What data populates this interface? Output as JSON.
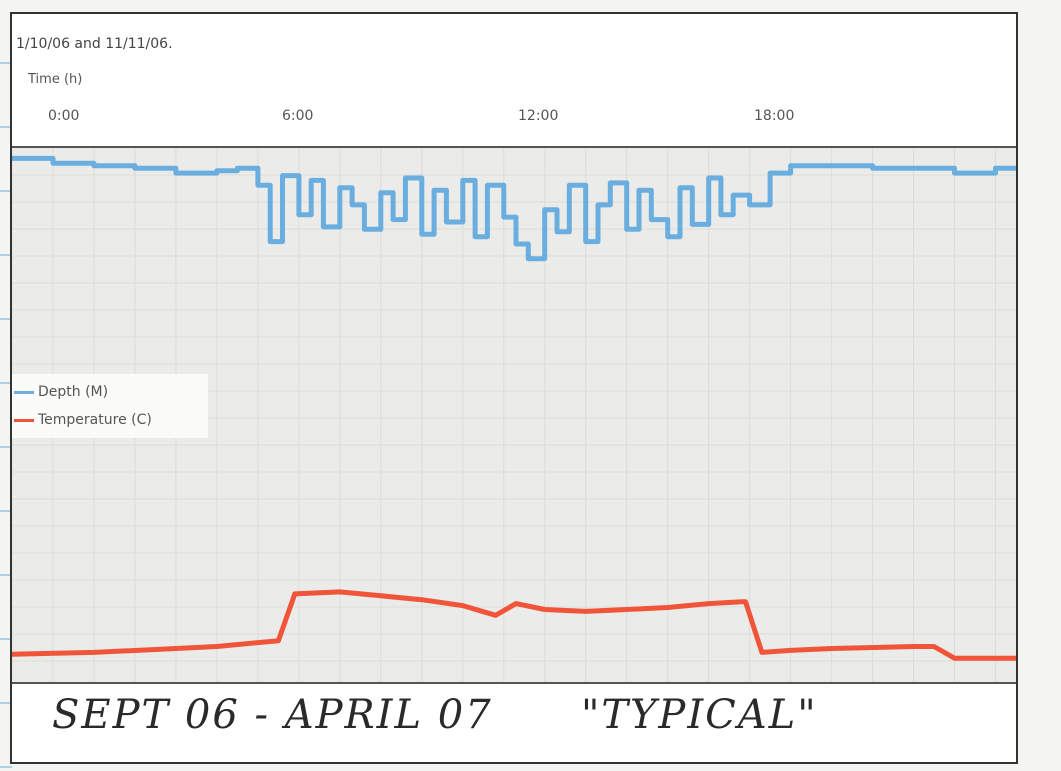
{
  "header": {
    "subtitle": "1/10/06 and 11/11/06.",
    "axis_title": "Time (h)"
  },
  "footer": {
    "handwritten_note": "SEPT 06 - APRIL 07      \"TYPICAL\""
  },
  "colors": {
    "depth": "#6aaee0",
    "temperature": "#f0553a"
  },
  "chart_data": {
    "type": "line",
    "title": "",
    "xlabel": "Time (h)",
    "ylabel": "",
    "x_ticks": [
      "0:00",
      "6:00",
      "12:00",
      "18:00"
    ],
    "xlim": [
      0,
      24.5
    ],
    "grid": true,
    "legend_position": "left-middle",
    "legend": [
      "Depth (M)",
      "Temperature (C)"
    ],
    "series": [
      {
        "name": "Depth (M)",
        "x": [
          0,
          1,
          2,
          3,
          4,
          5,
          5.5,
          6,
          6.3,
          6.6,
          7,
          7.3,
          7.6,
          8,
          8.3,
          8.6,
          9,
          9.3,
          9.6,
          10,
          10.3,
          10.6,
          11,
          11.3,
          11.6,
          12,
          12.3,
          12.6,
          13,
          13.3,
          13.6,
          14,
          14.3,
          14.6,
          15,
          15.3,
          15.6,
          16,
          16.3,
          16.6,
          17,
          17.3,
          17.6,
          18,
          18.5,
          19,
          20,
          21,
          22,
          23,
          24,
          24.5
        ],
        "y": [
          0.1,
          0.3,
          0.4,
          0.5,
          0.7,
          0.6,
          0.5,
          1.2,
          3.5,
          0.8,
          2.4,
          1.0,
          2.9,
          1.3,
          2.0,
          3.0,
          1.5,
          2.6,
          0.9,
          3.2,
          1.4,
          2.7,
          1.0,
          3.3,
          1.2,
          2.5,
          3.6,
          4.2,
          2.2,
          3.1,
          1.2,
          3.5,
          2.0,
          1.1,
          3.0,
          1.4,
          2.6,
          3.3,
          1.3,
          2.8,
          0.9,
          2.4,
          1.6,
          2.0,
          0.7,
          0.4,
          0.4,
          0.5,
          0.5,
          0.7,
          0.5,
          0.4
        ]
      },
      {
        "name": "Temperature (C)",
        "x": [
          0,
          2,
          4,
          5,
          6.5,
          6.9,
          8,
          9,
          10,
          11,
          11.8,
          12.3,
          13,
          14,
          15,
          16,
          17,
          17.8,
          17.9,
          18.3,
          19,
          20,
          22,
          22.5,
          23,
          24.5
        ],
        "y": [
          11.2,
          11.3,
          11.5,
          11.6,
          11.9,
          14.3,
          14.4,
          14.2,
          14.0,
          13.7,
          13.2,
          13.8,
          13.5,
          13.4,
          13.5,
          13.6,
          13.8,
          13.9,
          13.9,
          11.3,
          11.4,
          11.5,
          11.6,
          11.6,
          11.0,
          11.0
        ]
      }
    ]
  }
}
